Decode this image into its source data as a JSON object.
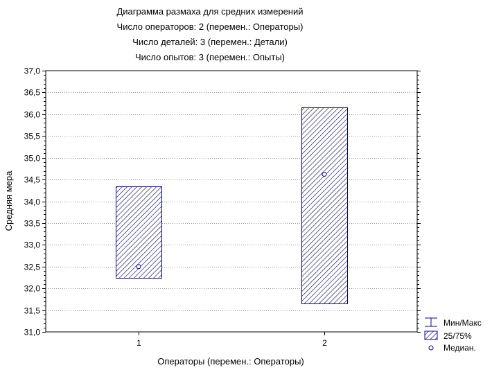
{
  "chart_data": {
    "type": "box",
    "title_lines": [
      "Диаграмма размаха для средних измерений",
      "Число операторов: 2   (перемен.: Операторы)",
      "Число    деталей: 3   (перемен.: Детали)",
      "Число     опытов: 3   (перемен.: Опыты)"
    ],
    "xlabel": "Операторы (перемен.: Операторы)",
    "ylabel": "Средняя мера",
    "categories": [
      "1",
      "2"
    ],
    "xlim": [
      0.5,
      2.5
    ],
    "ylim": [
      31.0,
      37.0
    ],
    "yticks": [
      "31,0",
      "31,5",
      "32,0",
      "32,5",
      "33,0",
      "33,5",
      "34,0",
      "34,5",
      "35,0",
      "35,5",
      "36,0",
      "36,5",
      "37,0"
    ],
    "ytick_values": [
      31.0,
      31.5,
      32.0,
      32.5,
      33.0,
      33.5,
      34.0,
      34.5,
      35.0,
      35.5,
      36.0,
      36.5,
      37.0
    ],
    "boxes": [
      {
        "category": "1",
        "q25": 32.25,
        "q75": 34.35,
        "median": 32.5
      },
      {
        "category": "2",
        "q25": 31.65,
        "q75": 36.15,
        "median": 34.62
      }
    ],
    "grid": true,
    "legend_position": "bottom-right",
    "legend": {
      "minmax_label": "Мин/Макс",
      "quartile_label": "25/75%",
      "median_label": "Медиан."
    },
    "colors": {
      "box_stroke": "#0000aa",
      "hatch": "#1a1a80",
      "grid": "#9a9a9a",
      "median_marker": "#0000aa"
    }
  }
}
